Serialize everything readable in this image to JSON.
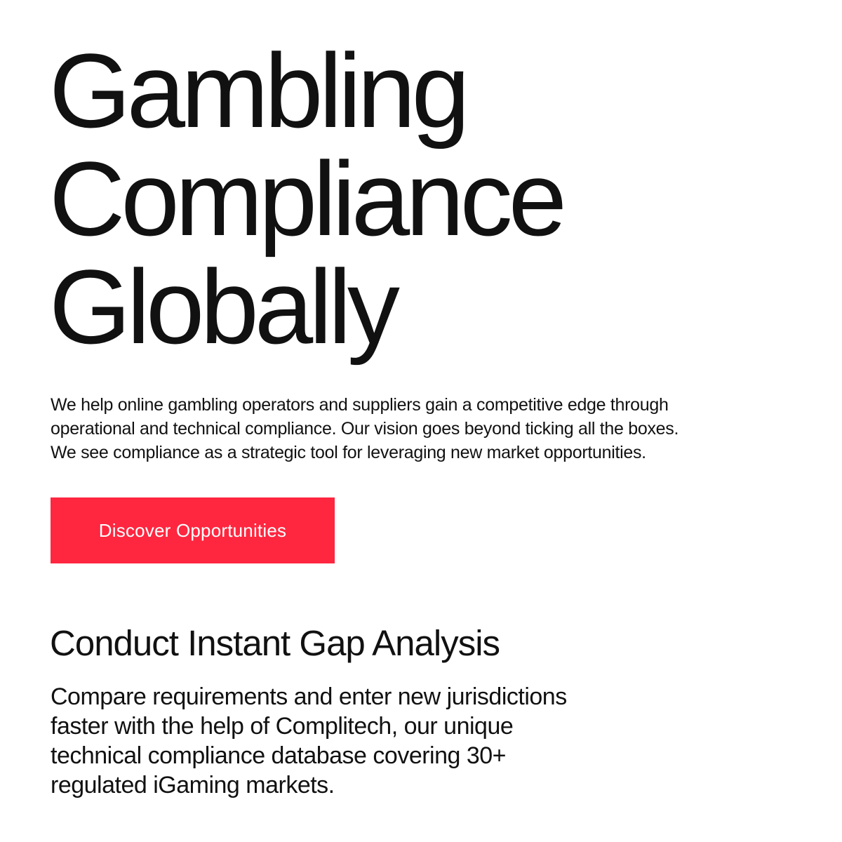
{
  "hero": {
    "title_lines": [
      "Gambling",
      "Compliance",
      "Globally"
    ]
  },
  "intro": {
    "lines": [
      "We help online gambling operators and suppliers gain a competitive edge through",
      "operational and technical compliance. Our vision goes beyond ticking all the boxes.",
      "We see compliance as a strategic tool for leveraging new market opportunities."
    ]
  },
  "cta": {
    "label": "Discover Opportunities",
    "color": "#ff263f"
  },
  "gap_analysis": {
    "heading": "Conduct Instant Gap Analysis",
    "lines": [
      "Compare requirements and enter new jurisdictions",
      "faster with the help of Complitech, our unique",
      "technical compliance database covering 30+",
      "regulated iGaming markets."
    ]
  }
}
